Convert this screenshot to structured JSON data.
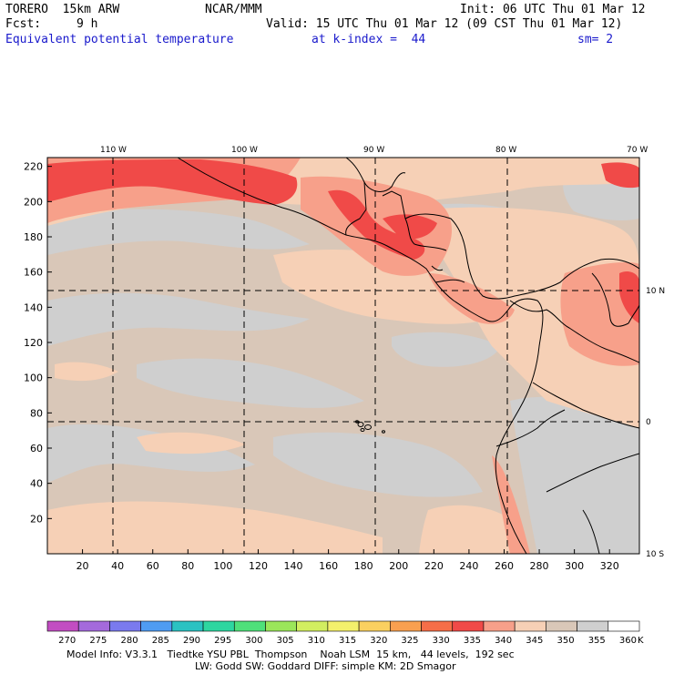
{
  "header": {
    "model": "TORERO  15km ARW",
    "center": "NCAR/MMM",
    "init": "Init: 06 UTC Thu 01 Mar 12",
    "fcst_label": "Fcst:",
    "fcst_value": "9 h",
    "valid": "Valid: 15 UTC Thu 01 Mar 12 (09 CST Thu 01 Mar 12)",
    "field": "Equivalent potential temperature",
    "level": "at k-index =  44",
    "smooth": "sm= 2"
  },
  "map": {
    "top_labels": [
      "110 W",
      "100 W",
      "90 W",
      "80 W",
      "70 W"
    ],
    "right_labels": [
      "10 N",
      "0",
      "10 S"
    ],
    "y_ticks": [
      220,
      200,
      180,
      160,
      140,
      120,
      100,
      80,
      60,
      40,
      20
    ],
    "x_ticks": [
      20,
      40,
      60,
      80,
      100,
      120,
      140,
      160,
      180,
      200,
      220,
      240,
      260,
      280,
      300,
      320
    ]
  },
  "colorbar": {
    "labels": [
      "270",
      "275",
      "280",
      "285",
      "290",
      "295",
      "300",
      "305",
      "310",
      "315",
      "320",
      "325",
      "330",
      "335",
      "340",
      "345",
      "350",
      "355",
      "360"
    ],
    "unit": "K",
    "colors": [
      "#c24dc2",
      "#a46adc",
      "#7a7aee",
      "#4f9cf2",
      "#2bc2c2",
      "#2ed6a0",
      "#4fe07a",
      "#9be65a",
      "#d2ee60",
      "#f4f06c",
      "#fad060",
      "#f9a050",
      "#f56e48",
      "#f04a48",
      "#f7a08a",
      "#f6d0b6",
      "#d9c7b8",
      "#cfcfcf",
      "#ffffff"
    ]
  },
  "footer": {
    "line1": "Model Info: V3.3.1   Tiedtke YSU PBL  Thompson    Noah LSM  15 km,   44 levels,  192 sec",
    "line2": "LW: Godd SW: Goddard DIFF: simple KM: 2D Smagor"
  }
}
